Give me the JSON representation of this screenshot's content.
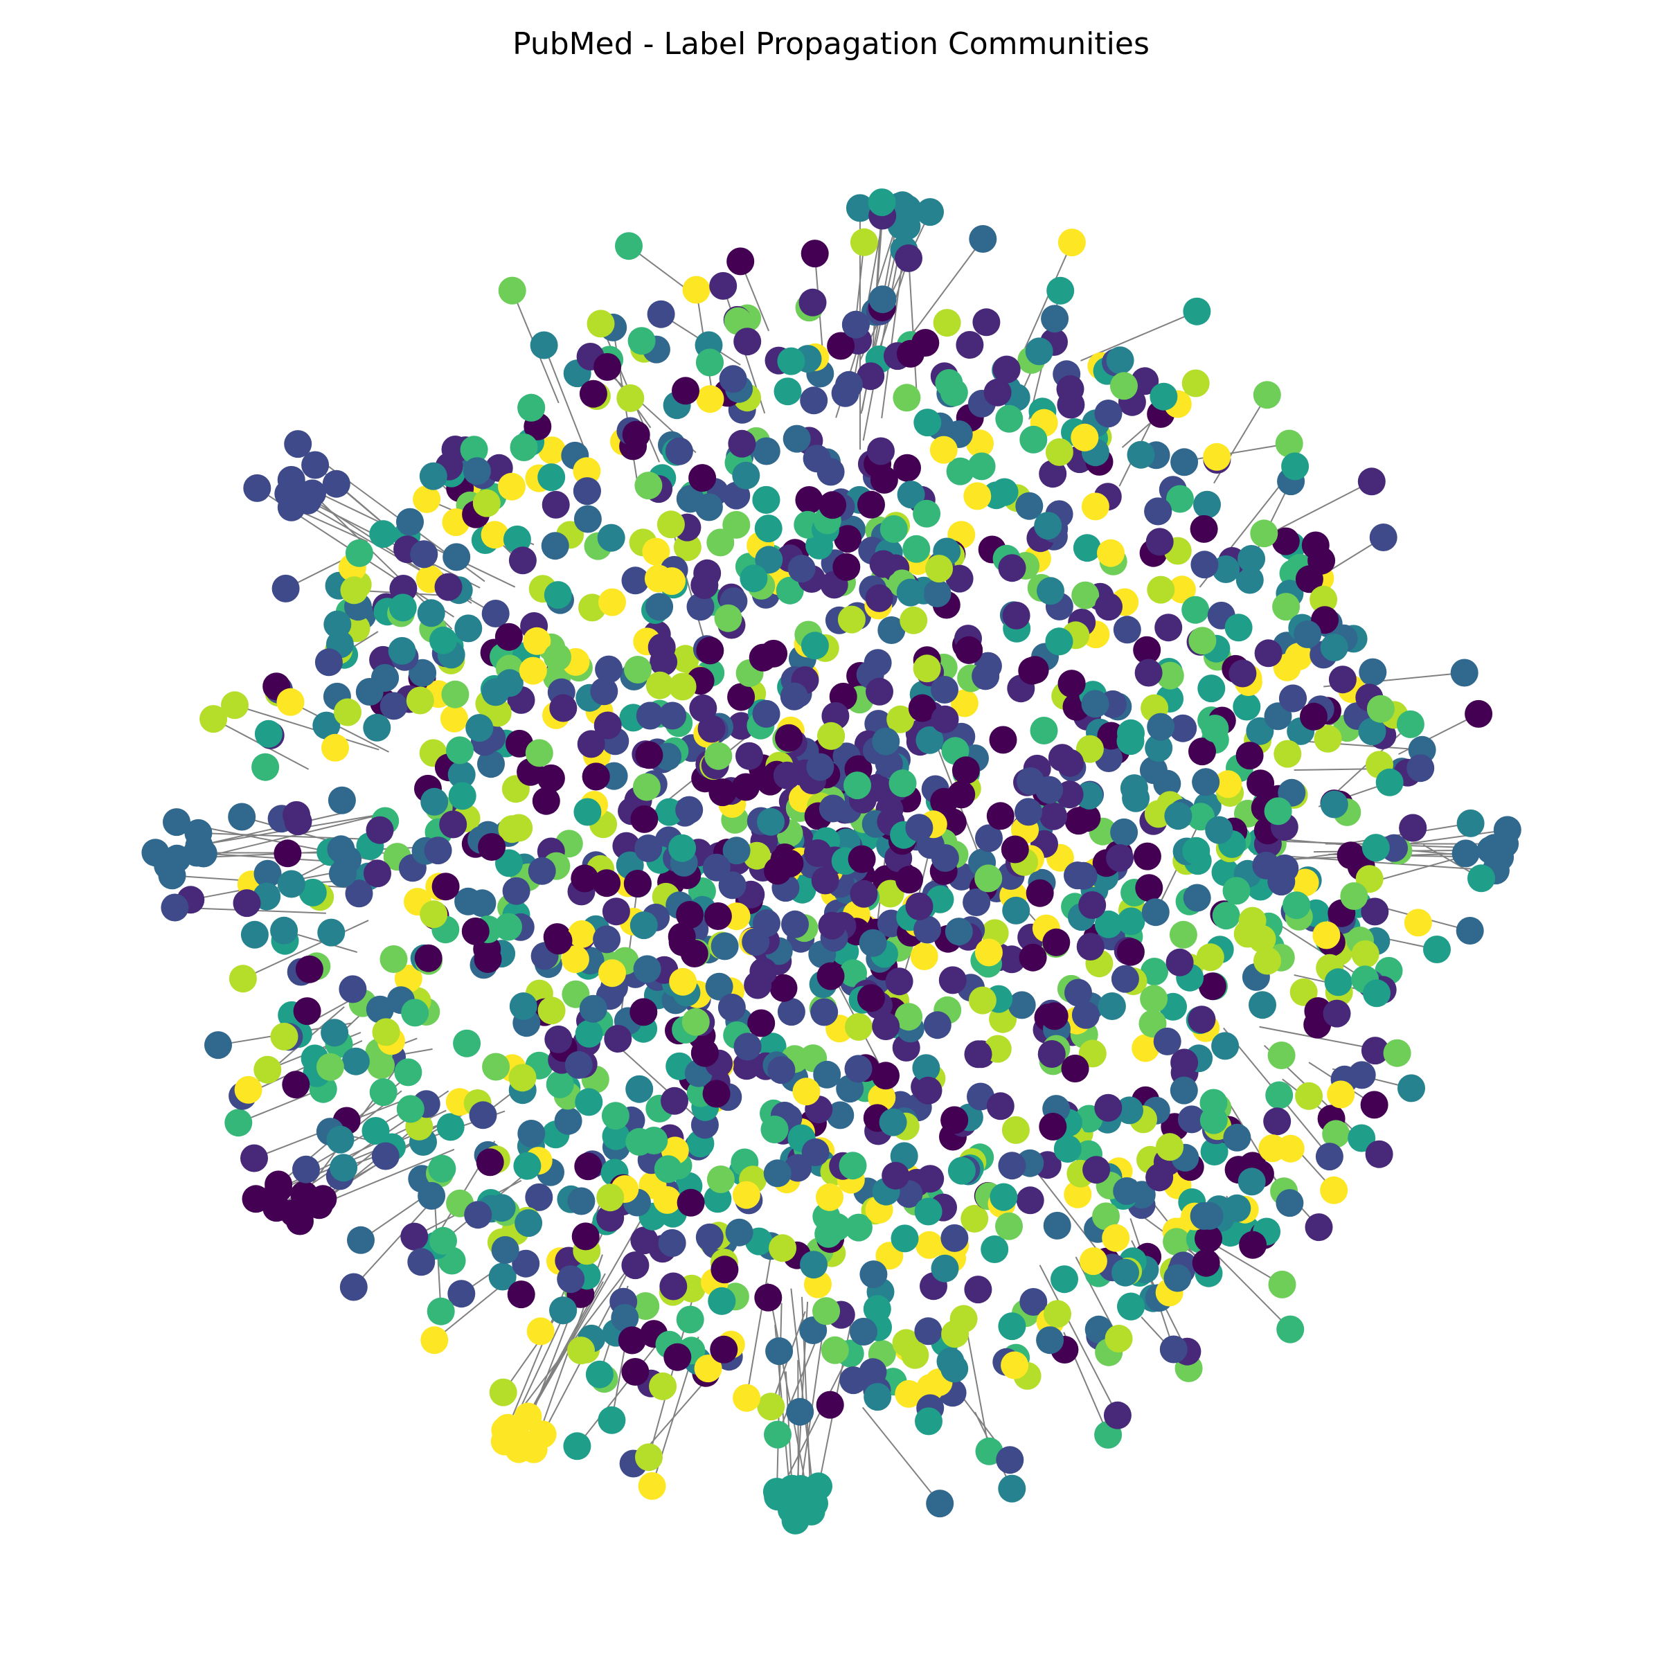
{
  "figure": {
    "title": "PubMed - Label Propagation Communities"
  },
  "graph_data": {
    "type": "network",
    "layout": "spring (force-directed), roughly circular cloud",
    "node_coloring": "community membership (viridis colormap)",
    "edge_color": "#808080",
    "communities": [
      {
        "color": "#440154"
      },
      {
        "color": "#482878"
      },
      {
        "color": "#3e4a89"
      },
      {
        "color": "#31688e"
      },
      {
        "color": "#26828e"
      },
      {
        "color": "#1f9e89"
      },
      {
        "color": "#35b779"
      },
      {
        "color": "#6ece58"
      },
      {
        "color": "#b5de2b"
      },
      {
        "color": "#fde725"
      }
    ],
    "approx_visible_nodes": 1800,
    "peripheral_clusters": [
      {
        "community": 3,
        "region": "left"
      },
      {
        "community": 0,
        "region": "lower-left"
      },
      {
        "community": 4,
        "region": "top"
      },
      {
        "community": 2,
        "region": "upper-left"
      },
      {
        "community": 9,
        "region": "bottom-left"
      },
      {
        "community": 5,
        "region": "bottom"
      },
      {
        "community": 3,
        "region": "right"
      }
    ]
  }
}
